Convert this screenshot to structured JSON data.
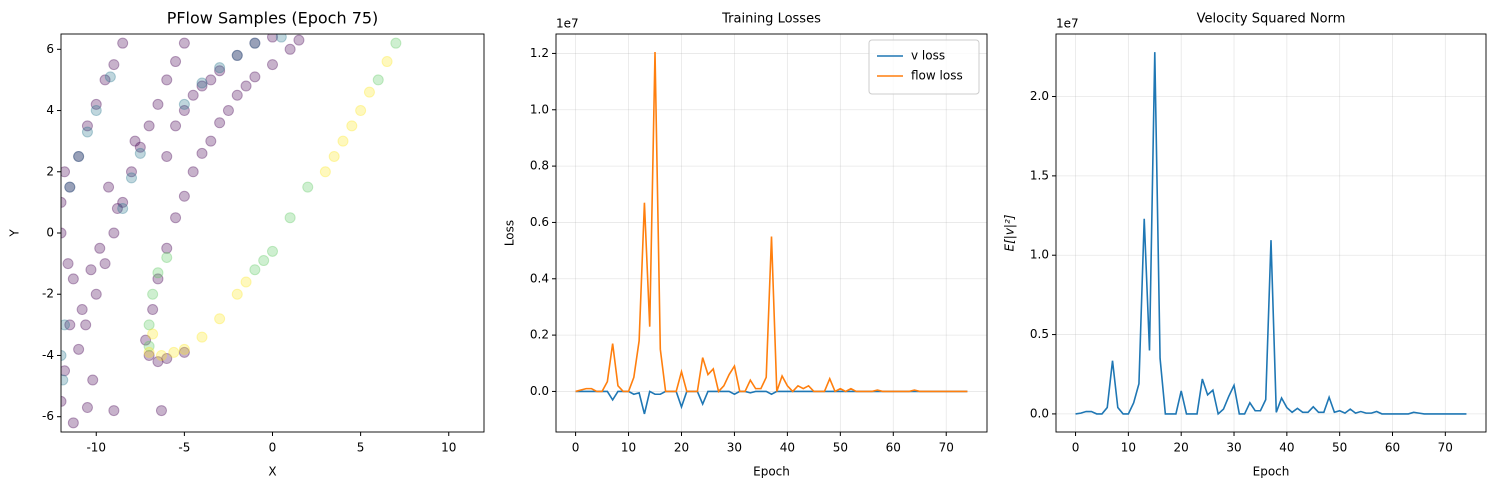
{
  "chart_data": [
    {
      "type": "scatter",
      "title": "PFlow Samples (Epoch 75)",
      "xlabel": "X",
      "ylabel": "Y",
      "xlim": [
        -12,
        12
      ],
      "ylim": [
        -6.5,
        6.5
      ],
      "xticks": [
        -10,
        -5,
        0,
        5,
        10
      ],
      "yticks": [
        -6,
        -4,
        -2,
        0,
        2,
        4,
        6
      ],
      "grid": false,
      "series": [
        {
          "color": "#440154",
          "x": [
            -12,
            -11.8,
            -11.5,
            -11.3,
            -12,
            -11.5,
            -11,
            -10.5,
            -10,
            -9.5,
            -9,
            -8.5,
            -12,
            -11.8,
            -10.5,
            -10.2,
            -10.6,
            -10,
            -9.5,
            -9,
            -8.5,
            -8,
            -7.5,
            -7,
            -6.5,
            -6,
            -5.5,
            -5,
            -9.8,
            -8.8,
            -6,
            -5.5,
            -5,
            -4,
            -3,
            -2,
            -1,
            0,
            -4.5,
            -3.5,
            -7.2,
            -6.8,
            -6.5,
            -6,
            -5.5,
            -5,
            -4.5,
            -4,
            -3.5,
            -3,
            -2.5,
            -2,
            -1.5,
            -1,
            0,
            1,
            1.5,
            -7,
            -6.5,
            -6,
            -5,
            -9,
            -6.3,
            -11.3,
            -11,
            -10.8,
            -9.3,
            -7.8,
            -11.6,
            -10.3
          ],
          "y": [
            -5.5,
            -4.5,
            -3,
            -1.5,
            0,
            1.5,
            2.5,
            3.5,
            4.2,
            5,
            5.5,
            6.2,
            1,
            2,
            -5.7,
            -4.8,
            -3,
            -2,
            -1,
            0,
            1,
            2,
            2.8,
            3.5,
            4.2,
            5,
            5.6,
            6.2,
            -0.5,
            0.8,
            2.5,
            3.5,
            4,
            4.8,
            5.3,
            5.8,
            6.2,
            6.4,
            4.5,
            5,
            -3.5,
            -2.5,
            -1.5,
            -0.5,
            0.5,
            1.2,
            2,
            2.6,
            3,
            3.6,
            4,
            4.5,
            4.8,
            5.1,
            5.5,
            6,
            6.3,
            -4,
            -4.2,
            -4.1,
            -3.9,
            -5.8,
            -5.8,
            -6.2,
            -3.8,
            -2.5,
            1.5,
            3,
            -1,
            -1.2
          ]
        },
        {
          "color": "#2a788e",
          "x": [
            -12,
            -11.8,
            -11.5,
            -11,
            -10.5,
            -10,
            -8.5,
            -8,
            -7.5,
            -4,
            -3,
            -2,
            -1,
            -5,
            0.5,
            -11.9,
            -9.2
          ],
          "y": [
            -4,
            -3,
            1.5,
            2.5,
            3.3,
            4,
            0.8,
            1.8,
            2.6,
            4.9,
            5.4,
            5.8,
            6.2,
            4.2,
            6.4,
            -4.8,
            5.1
          ]
        },
        {
          "color": "#5ec962",
          "x": [
            -7,
            -6.8,
            -6.5,
            -6,
            -1,
            0,
            1,
            -7,
            2,
            6,
            7,
            -0.5
          ],
          "y": [
            -3,
            -2,
            -1.3,
            -0.8,
            -1.2,
            -0.6,
            0.5,
            -3.7,
            1.5,
            5,
            6.2,
            -0.9
          ]
        },
        {
          "color": "#fde725",
          "x": [
            -7,
            -6.3,
            -5,
            -4,
            -3,
            -2,
            -1.5,
            3,
            4,
            4.5,
            5,
            5.5,
            6.5,
            3.5,
            -5.6,
            -6.8
          ],
          "y": [
            -3.9,
            -4,
            -3.8,
            -3.4,
            -2.8,
            -2,
            -1.6,
            2,
            3,
            3.5,
            4,
            4.6,
            5.6,
            2.5,
            -3.9,
            -3.3
          ]
        }
      ]
    },
    {
      "type": "line",
      "title": "Training Losses",
      "xlabel": "Epoch",
      "ylabel": "Loss",
      "y_offset_label": "1e7",
      "xlim": [
        -3.7,
        77.7
      ],
      "ylim": [
        -1440000,
        12690000
      ],
      "xticks": [
        0,
        10,
        20,
        30,
        40,
        50,
        60,
        70
      ],
      "yticks": [
        {
          "value": 0,
          "label": "0.0"
        },
        {
          "value": 2000000,
          "label": "0.2"
        },
        {
          "value": 4000000,
          "label": "0.4"
        },
        {
          "value": 6000000,
          "label": "0.6"
        },
        {
          "value": 8000000,
          "label": "0.8"
        },
        {
          "value": 10000000,
          "label": "1.0"
        },
        {
          "value": 12000000,
          "label": "1.2"
        }
      ],
      "grid": true,
      "legend": "upper right",
      "x": [
        0,
        1,
        2,
        3,
        4,
        5,
        6,
        7,
        8,
        9,
        10,
        11,
        12,
        13,
        14,
        15,
        16,
        17,
        18,
        19,
        20,
        21,
        22,
        23,
        24,
        25,
        26,
        27,
        28,
        29,
        30,
        31,
        32,
        33,
        34,
        35,
        36,
        37,
        38,
        39,
        40,
        41,
        42,
        43,
        44,
        45,
        46,
        47,
        48,
        49,
        50,
        51,
        52,
        53,
        54,
        55,
        56,
        57,
        58,
        59,
        60,
        61,
        62,
        63,
        64,
        65,
        66,
        67,
        68,
        69,
        70,
        71,
        72,
        73,
        74
      ],
      "series": [
        {
          "name": "v loss",
          "color": "#1f77b4",
          "values": [
            0,
            0,
            0,
            0,
            0,
            0,
            0,
            -300000,
            0,
            0,
            0,
            -100000,
            -50000,
            -800000,
            0,
            -100000,
            -100000,
            0,
            0,
            0,
            -550000,
            0,
            0,
            0,
            -450000,
            0,
            0,
            0,
            0,
            0,
            -100000,
            0,
            0,
            -50000,
            0,
            0,
            0,
            -100000,
            0,
            0,
            0,
            0,
            0,
            0,
            0,
            0,
            0,
            0,
            0,
            0,
            0,
            0,
            0,
            0,
            0,
            0,
            0,
            0,
            0,
            0,
            0,
            0,
            0,
            0,
            0,
            0,
            0,
            0,
            0,
            0,
            0,
            0,
            0,
            0,
            0
          ]
        },
        {
          "name": "flow loss",
          "color": "#ff7f0e",
          "values": [
            0,
            50000,
            100000,
            100000,
            0,
            0,
            350000,
            1700000,
            200000,
            0,
            0,
            500000,
            1800000,
            6700000,
            2300000,
            12050000,
            1500000,
            0,
            0,
            0,
            700000,
            0,
            0,
            0,
            1200000,
            600000,
            800000,
            0,
            200000,
            600000,
            900000,
            0,
            0,
            400000,
            100000,
            100000,
            500000,
            5500000,
            0,
            550000,
            200000,
            0,
            200000,
            100000,
            200000,
            0,
            0,
            0,
            450000,
            0,
            100000,
            0,
            100000,
            0,
            0,
            0,
            0,
            50000,
            0,
            0,
            0,
            0,
            0,
            0,
            50000,
            0,
            0,
            0,
            0,
            0,
            0,
            0,
            0,
            0,
            0
          ]
        }
      ]
    },
    {
      "type": "line",
      "title": "Velocity Squared Norm",
      "xlabel": "Epoch",
      "ylabel": "E[|v|²]",
      "y_offset_label": "1e7",
      "xlim": [
        -3.7,
        77.7
      ],
      "ylim": [
        -1140000,
        23940000
      ],
      "xticks": [
        0,
        10,
        20,
        30,
        40,
        50,
        60,
        70
      ],
      "yticks": [
        {
          "value": 0,
          "label": "0.0"
        },
        {
          "value": 5000000,
          "label": "0.5"
        },
        {
          "value": 10000000,
          "label": "1.0"
        },
        {
          "value": 15000000,
          "label": "1.5"
        },
        {
          "value": 20000000,
          "label": "2.0"
        }
      ],
      "grid": true,
      "x": [
        0,
        1,
        2,
        3,
        4,
        5,
        6,
        7,
        8,
        9,
        10,
        11,
        12,
        13,
        14,
        15,
        16,
        17,
        18,
        19,
        20,
        21,
        22,
        23,
        24,
        25,
        26,
        27,
        28,
        29,
        30,
        31,
        32,
        33,
        34,
        35,
        36,
        37,
        38,
        39,
        40,
        41,
        42,
        43,
        44,
        45,
        46,
        47,
        48,
        49,
        50,
        51,
        52,
        53,
        54,
        55,
        56,
        57,
        58,
        59,
        60,
        61,
        62,
        63,
        64,
        65,
        66,
        67,
        68,
        69,
        70,
        71,
        72,
        73,
        74
      ],
      "series": [
        {
          "color": "#1f77b4",
          "values": [
            0,
            50000,
            150000,
            150000,
            0,
            0,
            400000,
            3350000,
            400000,
            0,
            0,
            700000,
            1900000,
            12300000,
            4000000,
            22800000,
            3500000,
            0,
            0,
            0,
            1450000,
            0,
            0,
            0,
            2200000,
            1200000,
            1500000,
            0,
            300000,
            1100000,
            1800000,
            0,
            0,
            700000,
            200000,
            200000,
            900000,
            10950000,
            100000,
            1000000,
            400000,
            100000,
            350000,
            100000,
            100000,
            450000,
            100000,
            100000,
            1050000,
            100000,
            200000,
            50000,
            300000,
            50000,
            150000,
            50000,
            50000,
            150000,
            0,
            0,
            0,
            0,
            0,
            0,
            100000,
            50000,
            0,
            0,
            0,
            0,
            0,
            0,
            0,
            0,
            0
          ]
        }
      ]
    }
  ]
}
